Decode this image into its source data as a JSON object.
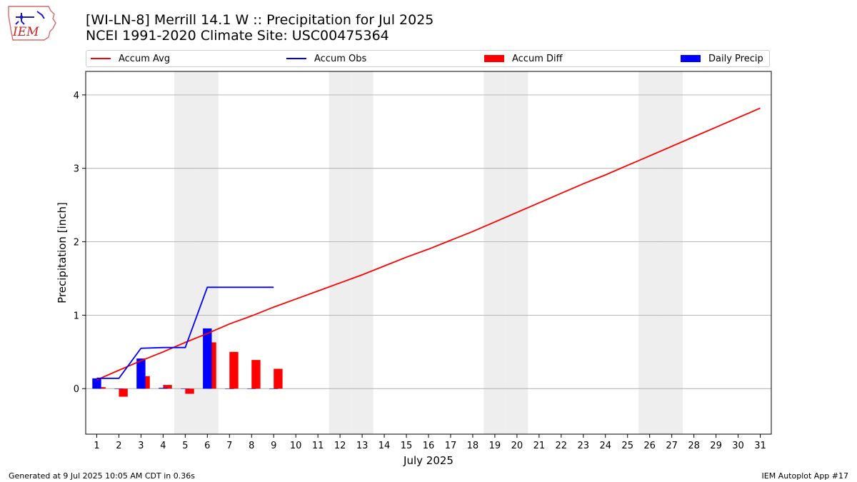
{
  "header": {
    "title_line1": "[WI-LN-8] Merrill 14.1 W :: Precipitation for Jul 2025",
    "title_line2": "NCEI 1991-2020 Climate Site: USC00475364",
    "logo_text": "IEM"
  },
  "footer": {
    "left": "Generated at 9 Jul 2025 10:05 AM CDT in 0.36s",
    "right": "IEM Autoplot App #17"
  },
  "colors": {
    "avg": "#ff0000",
    "obs": "#0000ff",
    "diff": "#ff0000",
    "daily": "#0000ff",
    "weekend": "#eeeeee",
    "grid": "#b0b0b0"
  },
  "chart_data": {
    "type": "bar",
    "xlabel": "July 2025",
    "ylabel": "Precipitation [inch]",
    "xlim": [
      0.5,
      31.5
    ],
    "ylim": [
      -0.62,
      4.32
    ],
    "y_ticks": [
      0,
      1,
      2,
      3,
      4
    ],
    "grid": "y",
    "legend_position": "top",
    "weekend_days": [
      5,
      6,
      12,
      13,
      19,
      20,
      26,
      27
    ],
    "days": [
      1,
      2,
      3,
      4,
      5,
      6,
      7,
      8,
      9,
      10,
      11,
      12,
      13,
      14,
      15,
      16,
      17,
      18,
      19,
      20,
      21,
      22,
      23,
      24,
      25,
      26,
      27,
      28,
      29,
      30,
      31
    ],
    "series": [
      {
        "name": "Accum Avg",
        "type": "line",
        "x": [
          1,
          2,
          3,
          4,
          5,
          6,
          7,
          8,
          9,
          10,
          11,
          12,
          13,
          14,
          15,
          16,
          17,
          18,
          19,
          20,
          21,
          22,
          23,
          24,
          25,
          26,
          27,
          28,
          29,
          30,
          31
        ],
        "values": [
          0.12,
          0.25,
          0.38,
          0.5,
          0.63,
          0.75,
          0.88,
          0.99,
          1.11,
          1.22,
          1.33,
          1.44,
          1.55,
          1.67,
          1.79,
          1.9,
          2.02,
          2.14,
          2.27,
          2.4,
          2.53,
          2.66,
          2.79,
          2.91,
          3.04,
          3.17,
          3.3,
          3.43,
          3.56,
          3.69,
          3.82
        ]
      },
      {
        "name": "Accum Obs",
        "type": "line",
        "x": [
          1,
          2,
          3,
          4,
          5,
          6,
          7,
          8,
          9
        ],
        "values": [
          0.14,
          0.14,
          0.55,
          0.56,
          0.56,
          1.38,
          1.38,
          1.38,
          1.38
        ]
      },
      {
        "name": "Accum Diff",
        "type": "bar",
        "x": [
          1,
          2,
          3,
          4,
          5,
          6,
          7,
          8,
          9
        ],
        "values": [
          0.02,
          -0.11,
          0.17,
          0.05,
          -0.07,
          0.63,
          0.5,
          0.39,
          0.27
        ]
      },
      {
        "name": "Daily Precip",
        "type": "bar",
        "x": [
          1,
          2,
          3,
          4,
          5,
          6,
          7,
          8,
          9
        ],
        "values": [
          0.14,
          0.0,
          0.41,
          0.01,
          0.0,
          0.82,
          0.0,
          0.0,
          0.0
        ]
      }
    ]
  }
}
